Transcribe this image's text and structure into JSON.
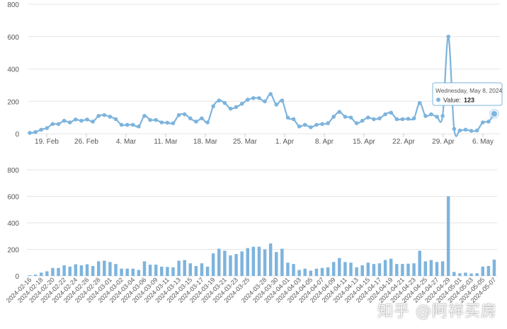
{
  "colors": {
    "line": "#7db4dd",
    "bar": "#7db4dd",
    "grid": "#e6e6e6",
    "axis_text": "#555555",
    "tooltip_border": "#7db4dd"
  },
  "watermark": "知乎 @阿祥买房",
  "tooltip": {
    "date": "Wednesday, May 8, 2024",
    "series_label": "Value:",
    "value": "123"
  },
  "chart_data": [
    {
      "type": "line",
      "x_start": "2024-02-16",
      "x_end": "2024-05-08",
      "x_tick_labels": [
        "19. Feb",
        "26. Feb",
        "4. Mar",
        "11. Mar",
        "18. Mar",
        "25. Mar",
        "1. Apr",
        "8. Apr",
        "15. Apr",
        "22. Apr",
        "29. Apr",
        "6. May"
      ],
      "x_tick_dates": [
        "2024-02-19",
        "2024-02-26",
        "2024-03-04",
        "2024-03-11",
        "2024-03-18",
        "2024-03-25",
        "2024-04-01",
        "2024-04-08",
        "2024-04-15",
        "2024-04-22",
        "2024-04-29",
        "2024-05-06"
      ],
      "yticks": [
        0,
        200,
        400,
        600,
        800
      ],
      "ylim": [
        0,
        800
      ],
      "values": [
        5,
        10,
        25,
        35,
        60,
        60,
        80,
        70,
        88,
        80,
        88,
        75,
        110,
        115,
        105,
        90,
        55,
        55,
        55,
        45,
        110,
        85,
        85,
        70,
        68,
        65,
        115,
        120,
        95,
        75,
        95,
        70,
        170,
        205,
        190,
        155,
        165,
        185,
        210,
        220,
        220,
        200,
        245,
        180,
        205,
        100,
        90,
        45,
        55,
        40,
        55,
        60,
        65,
        105,
        135,
        105,
        100,
        65,
        80,
        100,
        90,
        95,
        120,
        130,
        90,
        90,
        92,
        95,
        190,
        110,
        120,
        105,
        110,
        600,
        30,
        20,
        25,
        18,
        20,
        70,
        75,
        123
      ],
      "highlight_index": 81
    },
    {
      "type": "bar",
      "yticks": [
        0,
        200,
        400,
        600,
        800
      ],
      "ylim": [
        0,
        800
      ],
      "x_tick_labels": [
        "2024-02-16",
        "2024-02-18",
        "2024-02-20",
        "2024-02-22",
        "2024-02-24",
        "2024-02-26",
        "2024-02-28",
        "2024-03-01",
        "2024-03-02",
        "2024-03-04",
        "2024-03-06",
        "2024-03-09",
        "2024-03-11",
        "2024-03-13",
        "2024-03-15",
        "2024-03-17",
        "2024-03-19",
        "2024-03-21",
        "2024-03-23",
        "2024-03-25",
        "2024-03-28",
        "2024-03-30",
        "2024-04-01",
        "2024-04-03",
        "2024-04-05",
        "2024-04-07",
        "2024-04-09",
        "2024-04-11",
        "2024-04-13",
        "2024-04-15",
        "2024-04-17",
        "2024-04-19",
        "2024-04-21",
        "2024-04-23",
        "2024-04-25",
        "2024-04-27",
        "2024-04-29",
        "2024-05-01",
        "2024-05-03",
        "2024-05-05",
        "2024-05-07"
      ],
      "values": [
        5,
        10,
        25,
        35,
        60,
        60,
        80,
        70,
        88,
        80,
        88,
        75,
        110,
        115,
        105,
        90,
        55,
        55,
        55,
        45,
        110,
        85,
        85,
        70,
        68,
        65,
        115,
        120,
        95,
        75,
        95,
        70,
        170,
        205,
        190,
        155,
        165,
        185,
        210,
        220,
        220,
        200,
        245,
        180,
        205,
        100,
        90,
        45,
        55,
        40,
        55,
        60,
        65,
        105,
        135,
        105,
        100,
        65,
        80,
        100,
        90,
        95,
        120,
        130,
        90,
        90,
        92,
        95,
        190,
        110,
        120,
        105,
        110,
        600,
        30,
        20,
        25,
        18,
        20,
        70,
        75,
        123
      ]
    }
  ]
}
